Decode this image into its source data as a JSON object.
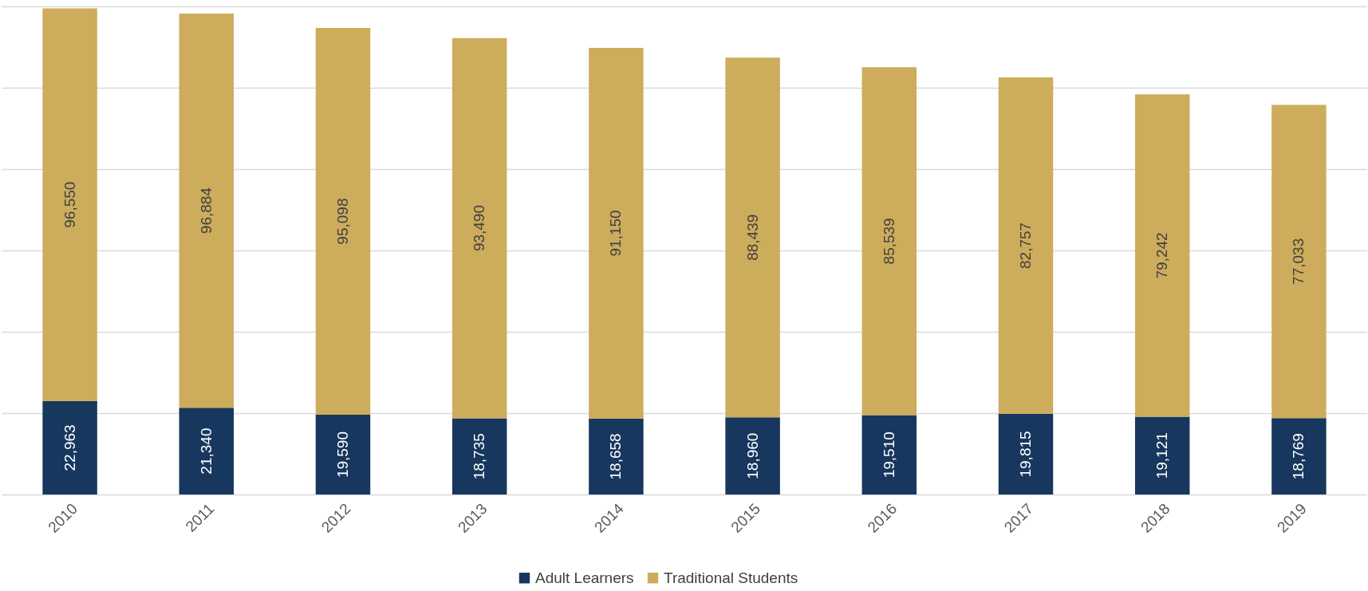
{
  "chart_data": {
    "type": "bar",
    "stacked": true,
    "categories": [
      "2010",
      "2011",
      "2012",
      "2013",
      "2014",
      "2015",
      "2016",
      "2017",
      "2018",
      "2019"
    ],
    "series": [
      {
        "name": "Adult Learners",
        "color": "#17375e",
        "values": [
          22963,
          21340,
          19590,
          18735,
          18658,
          18960,
          19510,
          19815,
          19121,
          18769
        ],
        "value_labels": [
          "22,963",
          "21,340",
          "19,590",
          "18,735",
          "18,658",
          "18,960",
          "19,510",
          "19,815",
          "19,121",
          "18,769"
        ]
      },
      {
        "name": "Traditional Students",
        "color": "#cdac5c",
        "values": [
          96550,
          96884,
          95098,
          93490,
          91150,
          88439,
          85539,
          82757,
          79242,
          77033
        ],
        "value_labels": [
          "96,550",
          "96,884",
          "95,098",
          "93,490",
          "91,150",
          "88,439",
          "85,539",
          "82,757",
          "79,242",
          "77,033"
        ]
      }
    ],
    "tick_labels": "x",
    "grid": "y",
    "legend": "bottom"
  }
}
